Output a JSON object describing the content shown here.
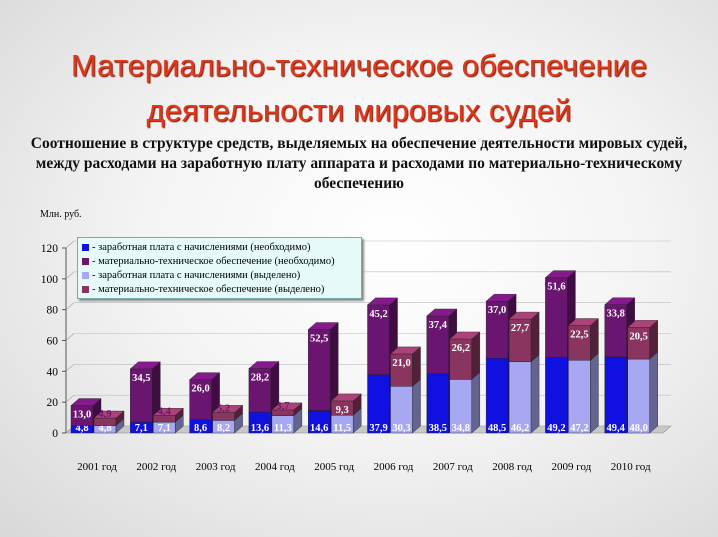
{
  "page": {
    "title_line1": "Материально-техническое обеспечение",
    "title_line2": "деятельности мировых судей",
    "subtitle": "Соотношение в структуре средств, выделяемых на обеспечение деятельности мировых судей, между расходами на заработную плату аппарата и расходами по материально-техническому обеспечению",
    "unit_label": "Млн. руб."
  },
  "chart_data": {
    "type": "bar",
    "stacked_groups": true,
    "categories": [
      "2001 год",
      "2002 год",
      "2003 год",
      "2004 год",
      "2005 год",
      "2006 год",
      "2007 год",
      "2008 год",
      "2009 год",
      "2010 год"
    ],
    "ylim": [
      0,
      120
    ],
    "yticks": [
      0,
      20,
      40,
      60,
      80,
      100,
      120
    ],
    "ylabel": "Млн. руб.",
    "legend_position": "top-left",
    "stacks": [
      {
        "name": "необходимо",
        "series": [
          {
            "name": "- заработная плата с начислениями (необходимо)",
            "color": "#1010e0",
            "values": [
              4.8,
              7.1,
              8.6,
              13.6,
              14.6,
              37.9,
              38.5,
              48.5,
              49.2,
              49.4
            ],
            "labels": [
              "4,8",
              "7,1",
              "8,6",
              "13,6",
              "14,6",
              "37,9",
              "38,5",
              "48,5",
              "49,2",
              "49,4"
            ]
          },
          {
            "name": "- материально-техническое обеспечение (необходимо)",
            "color": "#6a1570",
            "values": [
              13.0,
              34.5,
              26.0,
              28.2,
              52.5,
              45.2,
              37.4,
              37.0,
              51.6,
              33.8
            ],
            "labels": [
              "13,0",
              "34,5",
              "26,0",
              "28,2",
              "52,5",
              "45,2",
              "37,4",
              "37,0",
              "51,6",
              "33,8"
            ]
          }
        ]
      },
      {
        "name": "выделено",
        "series": [
          {
            "name": "- заработная плата с начислениями (выделено)",
            "color": "#a7a7f2",
            "values": [
              4.8,
              7.1,
              8.2,
              11.3,
              11.5,
              30.3,
              34.8,
              46.2,
              47.2,
              48.0
            ],
            "labels": [
              "4,8",
              "7,1",
              "8,2",
              "11,3",
              "11,5",
              "30,3",
              "34,8",
              "46,2",
              "47,2",
              "48,0"
            ]
          },
          {
            "name": "- материально-техническое обеспечение (выделено)",
            "color": "#8a3560",
            "values": [
              4.9,
              4.4,
              5.2,
              3.7,
              9.3,
              21.0,
              26.2,
              27.7,
              22.5,
              20.5
            ],
            "labels": [
              "4,9",
              "4,4",
              "5,2",
              "3,7",
              "9,3",
              "21,0",
              "26,2",
              "27,7",
              "22,5",
              "20,5"
            ]
          }
        ]
      }
    ]
  }
}
